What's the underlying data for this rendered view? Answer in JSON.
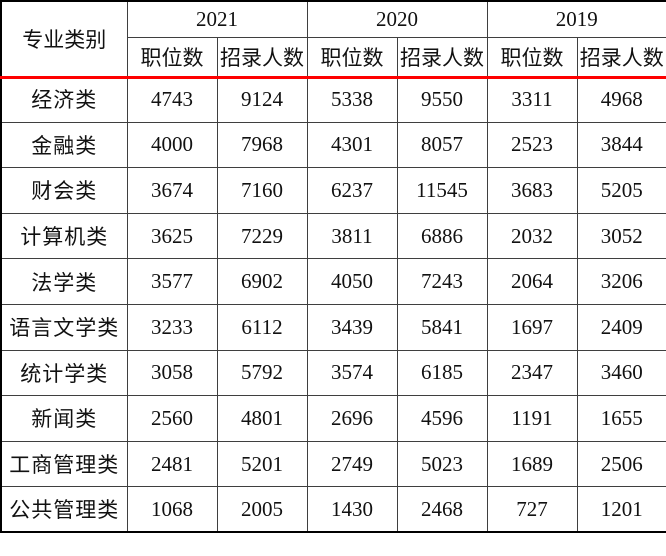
{
  "chart_data": {
    "type": "table",
    "corner_header": "专业类别",
    "year_columns": [
      "2021",
      "2020",
      "2019"
    ],
    "sub_columns": [
      "职位数",
      "招录人数"
    ],
    "rows": [
      {
        "category": "经济类",
        "values": [
          4743,
          9124,
          5338,
          9550,
          3311,
          4968
        ]
      },
      {
        "category": "金融类",
        "values": [
          4000,
          7968,
          4301,
          8057,
          2523,
          3844
        ]
      },
      {
        "category": "财会类",
        "values": [
          3674,
          7160,
          6237,
          11545,
          3683,
          5205
        ]
      },
      {
        "category": "计算机类",
        "values": [
          3625,
          7229,
          3811,
          6886,
          2032,
          3052
        ]
      },
      {
        "category": "法学类",
        "values": [
          3577,
          6902,
          4050,
          7243,
          2064,
          3206
        ]
      },
      {
        "category": "语言文学类",
        "values": [
          3233,
          6112,
          3439,
          5841,
          1697,
          2409
        ]
      },
      {
        "category": "统计学类",
        "values": [
          3058,
          5792,
          3574,
          6185,
          2347,
          3460
        ]
      },
      {
        "category": "新闻类",
        "values": [
          2560,
          4801,
          2696,
          4596,
          1191,
          1655
        ]
      },
      {
        "category": "工商管理类",
        "values": [
          2481,
          5201,
          2749,
          5023,
          1689,
          2506
        ]
      },
      {
        "category": "公共管理类",
        "values": [
          1068,
          2005,
          1430,
          2468,
          727,
          1201
        ]
      }
    ]
  },
  "colors": {
    "separator_red": "#fe0000",
    "outer_border": "#000000",
    "inner_border": "#3f3f3f",
    "text": "#111111"
  }
}
